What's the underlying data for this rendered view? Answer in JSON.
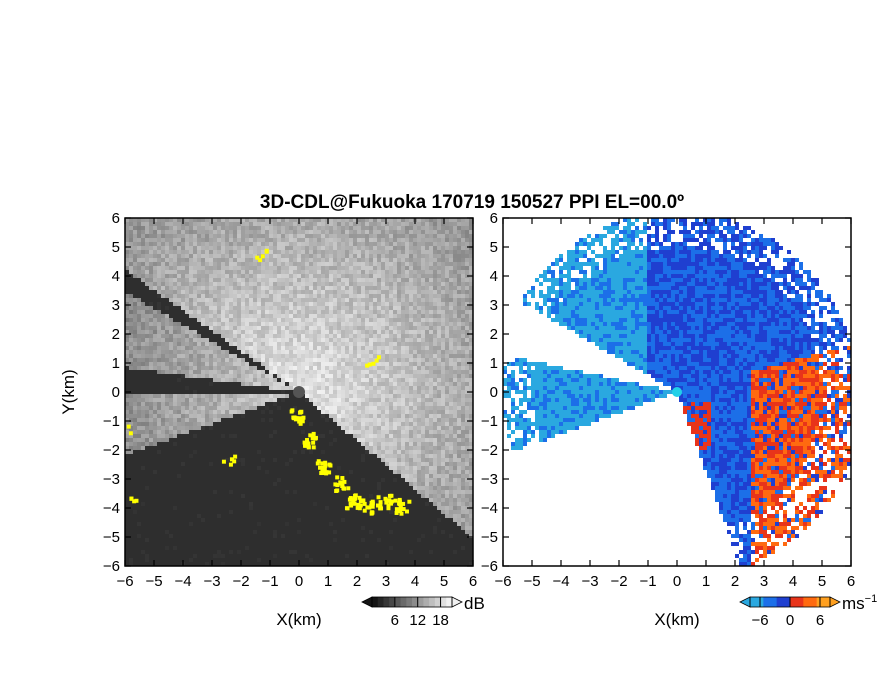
{
  "title": "3D-CDL@Fukuoka 170719 150527 PPI EL=00.0º",
  "chart_data": [
    {
      "type": "heatmap",
      "panel": "signal",
      "xlabel": "X(km)",
      "ylabel": "Y(km)",
      "xlim": [
        -6,
        6
      ],
      "ylim": [
        -6,
        6
      ],
      "x_ticks": [
        "−6",
        "−5",
        "−4",
        "−3",
        "−2",
        "−1",
        "0",
        "1",
        "2",
        "3",
        "4",
        "5",
        "6"
      ],
      "y_ticks": [
        "6",
        "5",
        "4",
        "3",
        "2",
        "1",
        "0",
        "−1",
        "−2",
        "−3",
        "−4",
        "−5",
        "−6"
      ],
      "colorbar": {
        "unit": "dB",
        "tick_labels": [
          "6",
          "12",
          "18"
        ],
        "ticks": [
          6,
          12,
          18
        ],
        "range": [
          0,
          21
        ],
        "colormap": "grayscale"
      },
      "highlight_color": "#ffff00",
      "background_color": "#2e2e2e"
    },
    {
      "type": "heatmap",
      "panel": "radial velocity",
      "xlabel": "X(km)",
      "xlim": [
        -6,
        6
      ],
      "ylim": [
        -6,
        6
      ],
      "x_ticks": [
        "−6",
        "−5",
        "−4",
        "−3",
        "−2",
        "−1",
        "0",
        "1",
        "2",
        "3",
        "4",
        "5",
        "6"
      ],
      "y_ticks": [
        "6",
        "5",
        "4",
        "3",
        "2",
        "1",
        "0",
        "−1",
        "−2",
        "−3",
        "−4",
        "−5",
        "−6"
      ],
      "colorbar": {
        "unit": "ms",
        "unit_exp": "−1",
        "tick_labels": [
          "−6",
          "0",
          "6"
        ],
        "ticks": [
          -6,
          0,
          6
        ],
        "range": [
          -8,
          8
        ],
        "colors": [
          "#2aa8e0",
          "#1c6fe8",
          "#1f3fd0",
          "#e8341a",
          "#ff6a10",
          "#ffa020"
        ]
      },
      "background_color": "#ffffff"
    }
  ]
}
